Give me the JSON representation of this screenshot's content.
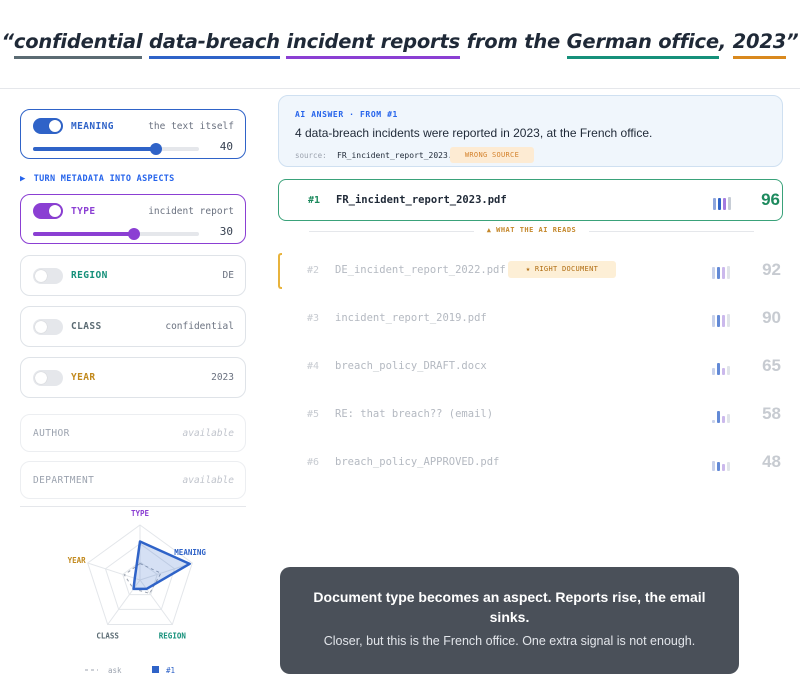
{
  "query": {
    "open_quote": "“",
    "words": [
      {
        "text": "confidential",
        "underline": "#5b6b73"
      },
      {
        "text": "data-breach",
        "underline": "#2f63c8"
      },
      {
        "text": "incident reports",
        "underline": "#8b3fd3"
      },
      {
        "text": "from the",
        "underline": ""
      },
      {
        "text": "German office",
        "underline": "#15907a"
      },
      {
        "text": ",",
        "underline": ""
      },
      {
        "text": "2023",
        "underline": "#d9891e"
      }
    ],
    "close_quote": "”"
  },
  "aspects": {
    "meaning": {
      "label": "MEANING",
      "value": "the text itself",
      "weight": "40",
      "weight_fraction": 0.74,
      "color": "#2f63c8",
      "enabled": true
    },
    "metadata_toggle": {
      "label": "TURN METADATA INTO ASPECTS",
      "icon": "triangle-right-icon"
    },
    "type": {
      "label": "TYPE",
      "value": "incident report",
      "weight": "30",
      "weight_fraction": 0.61,
      "color": "#8b3fd3",
      "enabled": true
    },
    "region": {
      "label": "REGION",
      "value": "DE",
      "color": "#15907a",
      "enabled": false
    },
    "class": {
      "label": "CLASS",
      "value": "confidential",
      "color": "#5b6b73",
      "enabled": false
    },
    "year": {
      "label": "YEAR",
      "value": "2023",
      "color": "#c28a1e",
      "enabled": false
    },
    "author": {
      "label": "AUTHOR",
      "value": "available"
    },
    "department": {
      "label": "DEPARTMENT",
      "value": "available"
    }
  },
  "radar": {
    "axes": [
      {
        "label": "TYPE",
        "color": "#8b3fd3"
      },
      {
        "label": "MEANING",
        "color": "#2f63c8"
      },
      {
        "label": "REGION",
        "color": "#15907a"
      },
      {
        "label": "CLASS",
        "color": "#5b6b73"
      },
      {
        "label": "YEAR",
        "color": "#c28a1e"
      }
    ],
    "ask_values": [
      0.3,
      0.4,
      0.3,
      0.2,
      0.3
    ],
    "top_values": [
      0.7,
      0.95,
      0.2,
      0.2,
      0.1
    ],
    "legend": {
      "ask": "ask",
      "top": "#1"
    }
  },
  "answer": {
    "tag": "AI ANSWER · FROM #1",
    "text": "4 data-breach incidents were reported in 2023, at the French office.",
    "source_label": "source:",
    "source_file": "FR_incident_report_2023.pdf",
    "badge": "WRONG SOURCE"
  },
  "reads_label": "▲ WHAT THE AI READS",
  "results": [
    {
      "rank": "#1",
      "file": "FR_incident_report_2023.pdf",
      "score": "96",
      "bars": [
        0.75,
        0.75,
        0.75,
        0.8
      ]
    },
    {
      "rank": "#2",
      "file": "DE_incident_report_2022.pdf",
      "score": "92",
      "badge": "★ RIGHT DOCUMENT",
      "bars": [
        0.75,
        0.75,
        0.75,
        0.8
      ]
    },
    {
      "rank": "#3",
      "file": "incident_report_2019.pdf",
      "score": "90",
      "bars": [
        0.75,
        0.75,
        0.75,
        0.8
      ]
    },
    {
      "rank": "#4",
      "file": "breach_policy_DRAFT.docx",
      "score": "65",
      "bars": [
        0.45,
        0.75,
        0.45,
        0.55
      ]
    },
    {
      "rank": "#5",
      "file": "RE: that breach?? (email)",
      "score": "58",
      "bars": [
        0.2,
        0.75,
        0.45,
        0.55
      ]
    },
    {
      "rank": "#6",
      "file": "breach_policy_APPROVED.pdf",
      "score": "48",
      "bars": [
        0.6,
        0.55,
        0.45,
        0.55
      ]
    }
  ],
  "caption": {
    "headline": "Document type becomes an aspect. Reports rise, the email sinks.",
    "sub": "Closer, but this is the French office. One extra signal is not enough."
  }
}
